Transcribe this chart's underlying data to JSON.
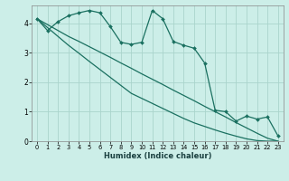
{
  "xlabel": "Humidex (Indice chaleur)",
  "ylabel": "",
  "background_color": "#cceee8",
  "grid_color": "#aad4cc",
  "line_color": "#1a7060",
  "xlim": [
    -0.5,
    23.5
  ],
  "ylim": [
    0,
    4.6
  ],
  "yticks": [
    0,
    1,
    2,
    3,
    4
  ],
  "xticks": [
    0,
    1,
    2,
    3,
    4,
    5,
    6,
    7,
    8,
    9,
    10,
    11,
    12,
    13,
    14,
    15,
    16,
    17,
    18,
    19,
    20,
    21,
    22,
    23
  ],
  "line1_x": [
    0,
    1,
    2,
    3,
    4,
    5,
    6,
    7,
    8,
    9,
    10,
    11,
    12,
    13,
    14,
    15,
    16,
    17,
    18,
    19,
    20,
    21,
    22,
    23
  ],
  "line1_y": [
    4.15,
    3.95,
    3.75,
    3.55,
    3.38,
    3.2,
    3.02,
    2.84,
    2.65,
    2.47,
    2.28,
    2.1,
    1.92,
    1.73,
    1.55,
    1.37,
    1.18,
    1.0,
    0.82,
    0.63,
    0.45,
    0.27,
    0.1,
    0.0
  ],
  "line2_x": [
    0,
    1,
    2,
    3,
    4,
    5,
    6,
    7,
    8,
    9,
    10,
    11,
    12,
    13,
    14,
    15,
    16,
    17,
    18,
    19,
    20,
    21,
    22,
    23
  ],
  "line2_y": [
    4.15,
    3.85,
    3.55,
    3.25,
    2.98,
    2.7,
    2.43,
    2.16,
    1.89,
    1.62,
    1.45,
    1.28,
    1.11,
    0.94,
    0.77,
    0.62,
    0.5,
    0.38,
    0.27,
    0.17,
    0.08,
    0.02,
    0.0,
    0.0
  ],
  "line3_x": [
    0,
    1,
    2,
    3,
    4,
    5,
    6,
    7,
    8,
    9,
    10,
    11,
    12,
    13,
    14,
    15,
    16,
    17,
    18,
    19,
    20,
    21,
    22,
    23
  ],
  "line3_y": [
    4.15,
    3.75,
    4.05,
    4.25,
    4.35,
    4.43,
    4.35,
    3.88,
    3.35,
    3.28,
    3.35,
    4.43,
    4.15,
    3.38,
    3.25,
    3.15,
    2.65,
    1.05,
    1.0,
    0.68,
    0.85,
    0.75,
    0.82,
    0.18
  ]
}
